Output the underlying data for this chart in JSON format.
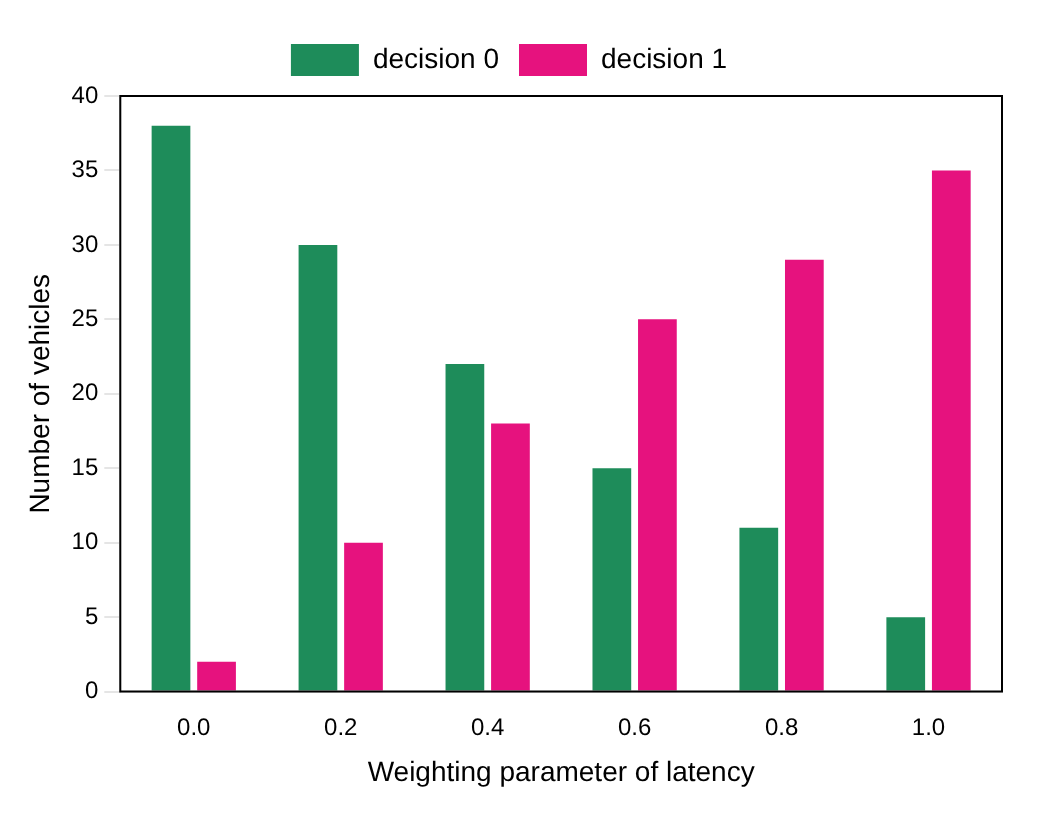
{
  "chart_data": {
    "type": "bar",
    "xlabel": "Weighting parameter of latency",
    "ylabel": "Number of vehicles",
    "categories": [
      "0.0",
      "0.2",
      "0.4",
      "0.6",
      "0.8",
      "1.0"
    ],
    "series": [
      {
        "name": "decision 0",
        "color": "#1e8c5a",
        "values": [
          38,
          30,
          22,
          15,
          11,
          5
        ]
      },
      {
        "name": "decision 1",
        "color": "#e6127e",
        "values": [
          2,
          10,
          18,
          25,
          29,
          35
        ]
      }
    ],
    "ylim": [
      0,
      40
    ],
    "yticks": [
      0,
      5,
      10,
      15,
      20,
      25,
      30,
      35,
      40
    ],
    "grid": false,
    "legend": "top"
  }
}
